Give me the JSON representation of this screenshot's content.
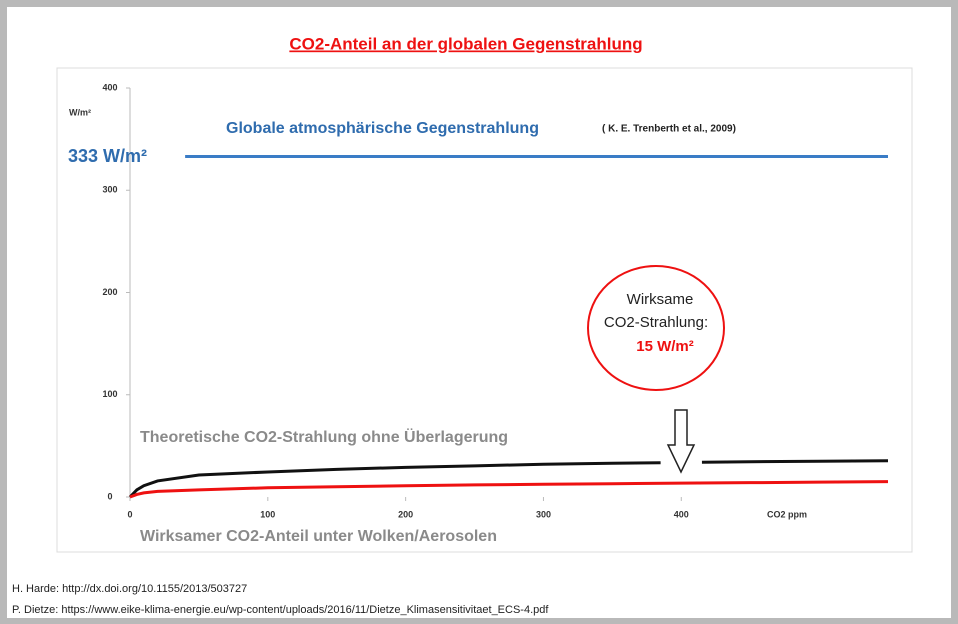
{
  "chart_data": {
    "type": "line",
    "title": "CO2-Anteil an der globalen Gegenstrahlung",
    "y_label": "W/m²",
    "x_label": "CO2 ppm",
    "xlim": [
      0,
      550
    ],
    "ylim": [
      0,
      400
    ],
    "xticks": [
      0,
      100,
      200,
      300,
      400
    ],
    "yticks": [
      0,
      100,
      200,
      300,
      400
    ],
    "series": [
      {
        "name": "Globale atmosphärische Gegenstrahlung",
        "color": "#3a7cc6",
        "x": [
          40,
          550
        ],
        "values": [
          333,
          333
        ]
      },
      {
        "name": "Theoretische CO2-Strahlung ohne Überlagerung",
        "color": "#111111",
        "x": [
          0,
          5,
          10,
          20,
          50,
          100,
          150,
          200,
          250,
          300,
          350,
          385,
          400,
          415,
          450,
          500,
          550
        ],
        "values": [
          0,
          7,
          11,
          15.7,
          21.5,
          24.5,
          27,
          29,
          30.5,
          32,
          33,
          33.5,
          null,
          34,
          34.5,
          35,
          35.5
        ]
      },
      {
        "name": "Wirksamer CO2-Anteil unter Wolken/Aerosolen",
        "color": "#ee1111",
        "x": [
          0,
          5,
          10,
          20,
          50,
          100,
          150,
          200,
          250,
          300,
          350,
          400,
          450,
          500,
          550
        ],
        "values": [
          0,
          2.5,
          4,
          5.5,
          7,
          9,
          10,
          11,
          11.8,
          12.5,
          13,
          13.6,
          14,
          14.5,
          15
        ]
      }
    ],
    "annotations": [
      "( K. E. Trenberth et al., 2009)",
      "333 W/m²",
      "Wirksame",
      "CO2-Strahlung:",
      "15 W/m²"
    ],
    "sources": [
      "H. Harde: http://dx.doi.org/10.1155/2013/503727",
      "P. Dietze: https://www.eike-klima-energie.eu/wp-content/uploads/2016/11/Dietze_Klimasensitivitaet_ECS-4.pdf"
    ]
  }
}
